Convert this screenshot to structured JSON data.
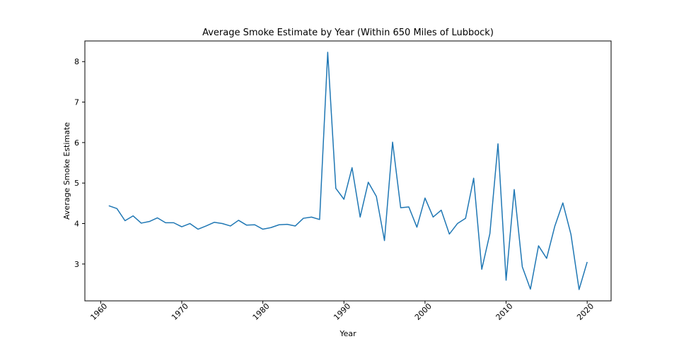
{
  "chart_data": {
    "type": "line",
    "title": "Average Smoke Estimate by Year (Within 650 Miles of Lubbock)",
    "xlabel": "Year",
    "ylabel": "Average Smoke Estimate",
    "xlim": [
      1958.05,
      2022.95
    ],
    "ylim": [
      2.09,
      8.51
    ],
    "xticks": [
      1960,
      1970,
      1980,
      1990,
      2000,
      2010,
      2020
    ],
    "yticks": [
      3,
      4,
      5,
      6,
      7,
      8
    ],
    "grid": false,
    "legend": "none",
    "line_color": "#1f77b4",
    "series": [
      {
        "x": [
          1961,
          1962,
          1963,
          1964,
          1965,
          1966,
          1967,
          1968,
          1969,
          1970,
          1971,
          1972,
          1973,
          1974,
          1975,
          1976,
          1977,
          1978,
          1979,
          1980,
          1981,
          1982,
          1983,
          1984,
          1985,
          1986,
          1987,
          1988,
          1989,
          1990,
          1991,
          1992,
          1993,
          1994,
          1995,
          1996,
          1997,
          1998,
          1999,
          2000,
          2001,
          2002,
          2003,
          2004,
          2005,
          2006,
          2007,
          2008,
          2009,
          2010,
          2011,
          2012,
          2013,
          2014,
          2015,
          2016,
          2017,
          2018,
          2019,
          2020
        ],
        "values": [
          4.44,
          4.37,
          4.07,
          4.19,
          4.01,
          4.05,
          4.14,
          4.02,
          4.02,
          3.92,
          4.0,
          3.86,
          3.94,
          4.03,
          4.0,
          3.94,
          4.08,
          3.96,
          3.97,
          3.86,
          3.9,
          3.97,
          3.98,
          3.94,
          4.13,
          4.16,
          4.1,
          8.23,
          4.87,
          4.6,
          5.38,
          4.16,
          5.02,
          4.67,
          3.58,
          6.01,
          4.39,
          4.41,
          3.91,
          4.63,
          4.16,
          4.33,
          3.74,
          4.0,
          4.13,
          5.12,
          2.87,
          3.75,
          5.97,
          2.6,
          4.84,
          2.93,
          2.38,
          3.45,
          3.14,
          3.93,
          4.51,
          3.73,
          2.37,
          3.05
        ]
      }
    ]
  }
}
